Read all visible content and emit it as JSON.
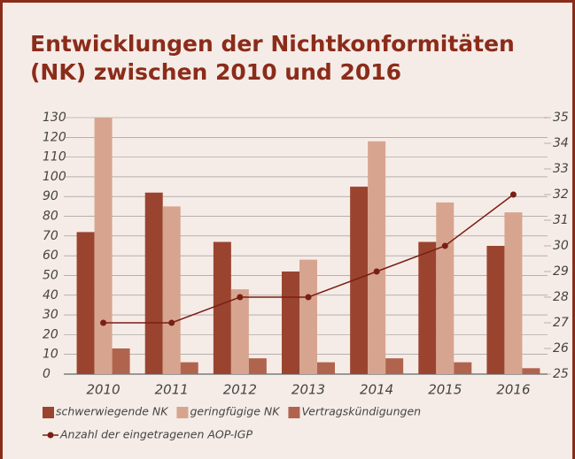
{
  "chart_data": {
    "type": "bar",
    "title": "Entwicklungen der Nichtkonformitäten (NK) zwischen 2010 und 2016",
    "categories": [
      "2010",
      "2011",
      "2012",
      "2013",
      "2014",
      "2015",
      "2016"
    ],
    "series": [
      {
        "name": "schwerwiegende NK",
        "color": "#9a4430",
        "values": [
          72,
          92,
          67,
          52,
          95,
          67,
          65
        ]
      },
      {
        "name": "geringfügige NK",
        "color": "#d7a58f",
        "values": [
          130,
          85,
          43,
          58,
          118,
          87,
          82
        ]
      },
      {
        "name": "Vertragskündigungen",
        "color": "#b0644e",
        "values": [
          13,
          6,
          8,
          6,
          8,
          6,
          3
        ]
      },
      {
        "name": "Anzahl der eingetragenen AOP-IGP",
        "color": "#7a1f14",
        "type": "line",
        "axis": "y2",
        "values": [
          27,
          27,
          28,
          28,
          29,
          30,
          32
        ]
      }
    ],
    "ylim": [
      0,
      130
    ],
    "yticks": [
      0,
      10,
      20,
      30,
      40,
      50,
      60,
      70,
      80,
      90,
      100,
      110,
      120,
      130
    ],
    "y2lim": [
      25,
      35
    ],
    "y2ticks": [
      25,
      26,
      27,
      28,
      29,
      30,
      31,
      32,
      33,
      34,
      35
    ],
    "grid": true
  }
}
